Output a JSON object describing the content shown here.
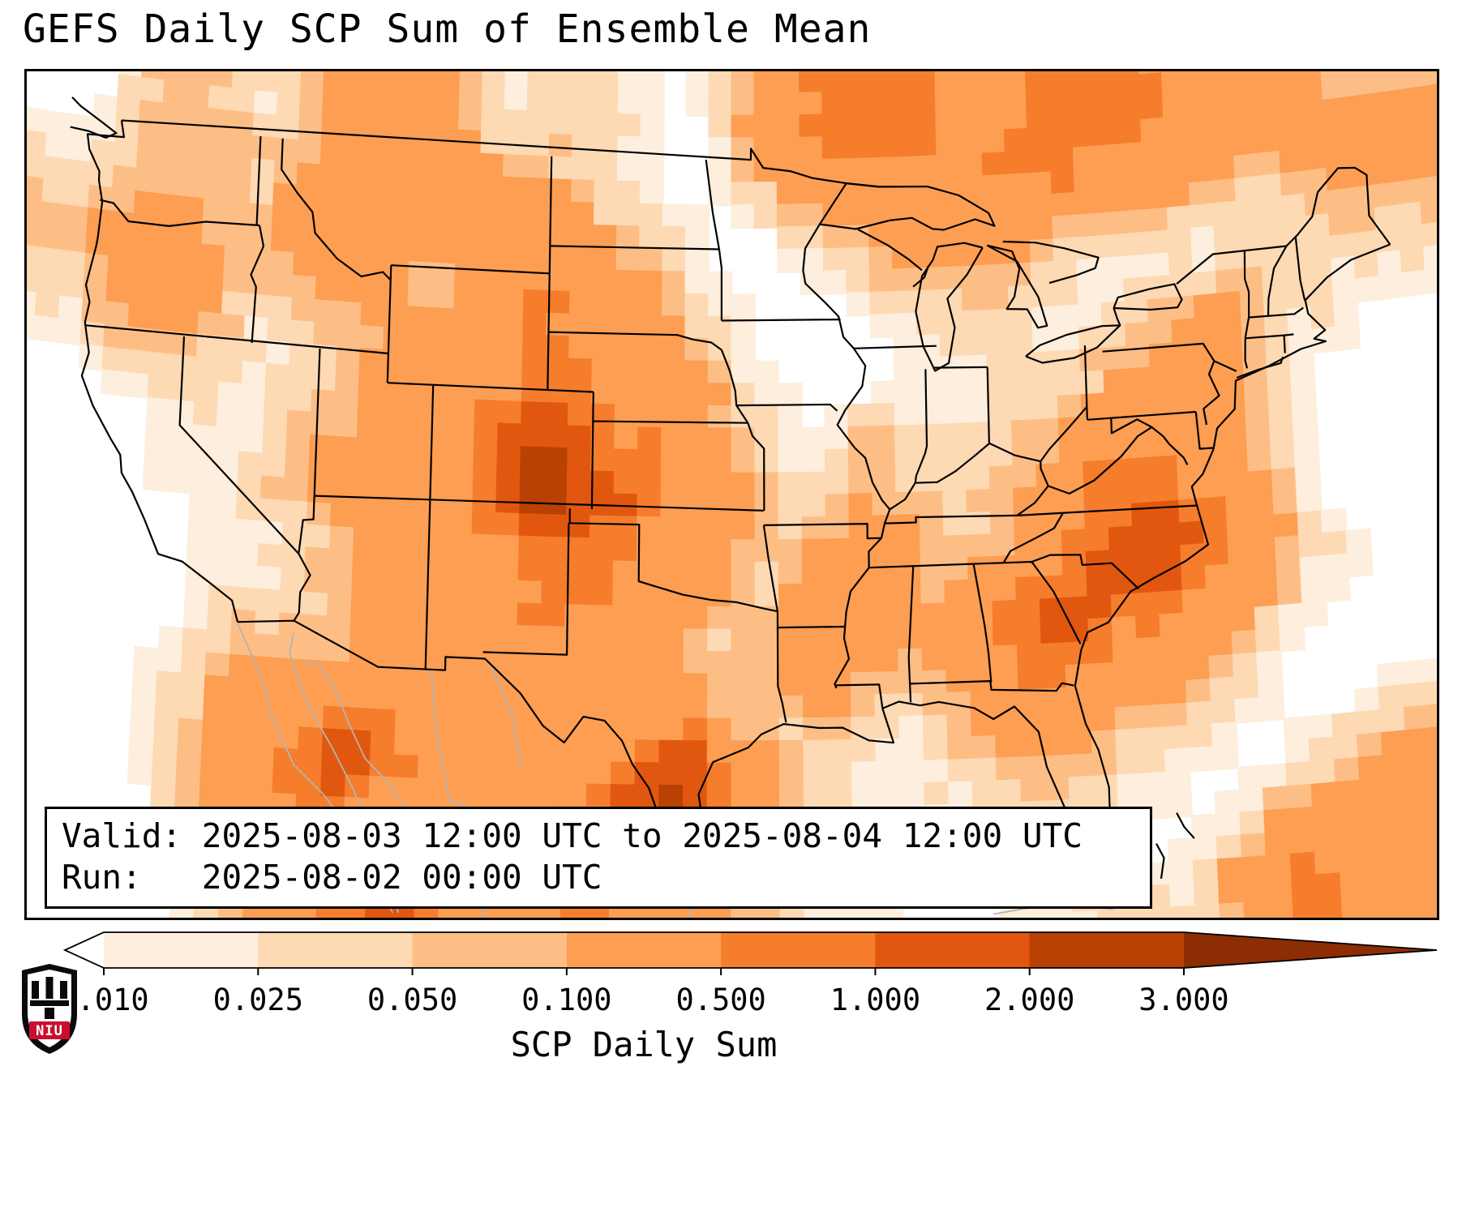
{
  "title": "GEFS Daily SCP Sum of Ensemble Mean",
  "info_box": {
    "valid_line": "Valid: 2025-08-03 12:00 UTC to 2025-08-04 12:00 UTC",
    "run_line": "Run:   2025-08-02 00:00 UTC"
  },
  "colorbar": {
    "label": "SCP Daily Sum",
    "tick_labels": [
      "0.010",
      "0.025",
      "0.050",
      "0.100",
      "0.500",
      "1.000",
      "2.000",
      "3.000"
    ],
    "bin_colors": [
      "#fdeedd",
      "#fdd9b4",
      "#fdbe85",
      "#fd9e53",
      "#f57d2c",
      "#e2570f",
      "#b94103"
    ],
    "under_color": "#ffffff",
    "over_color": "#8c2d04"
  },
  "logo": {
    "text": "NIU",
    "shield_color": "#0a0a0a",
    "band_color": "#c8102e",
    "text_color": "#ffffff"
  },
  "chart_data": {
    "type": "heatmap",
    "title": "GEFS Daily SCP Sum of Ensemble Mean",
    "colorbar_label": "SCP Daily Sum",
    "valid": "2025-08-03 12:00 UTC to 2025-08-04 12:00 UTC",
    "run": "2025-08-02 00:00 UTC",
    "levels": [
      0.01,
      0.025,
      0.05,
      0.1,
      0.5,
      1,
      2,
      3
    ],
    "legend_position": "bottom",
    "extent": {
      "lon_min": -125.5,
      "lon_max": -66.5,
      "lat_min": 23.0,
      "lat_max": 50.5
    },
    "grid": {
      "ncols": 29,
      "nrows": 18,
      "order": "row-major, first row = northernmost latitude band, first column = westernmost longitude band",
      "units": "SCP (dimensionless daily sum, ensemble mean)",
      "values": [
        [
          0,
          0.04,
          0.08,
          0.04,
          0.02,
          0.08,
          0.3,
          0.3,
          0.08,
          0.02,
          0.04,
          0.04,
          0.02,
          0,
          0.04,
          0.3,
          0.7,
          0.7,
          0.7,
          0.3,
          0.3,
          0.7,
          0.7,
          0.7,
          0.3,
          0.3,
          0.3,
          0.08,
          0.08
        ],
        [
          0.02,
          0.04,
          0.08,
          0.08,
          0.04,
          0.08,
          0.3,
          0.3,
          0.3,
          0.08,
          0.08,
          0.04,
          0.02,
          0,
          0.02,
          0.08,
          0.3,
          0.3,
          0.3,
          0.3,
          0.7,
          0.7,
          0.3,
          0.3,
          0.3,
          0.08,
          0.08,
          0.3,
          0.3
        ],
        [
          0.04,
          0.08,
          0.08,
          0.08,
          0.04,
          0.3,
          0.3,
          0.3,
          0.3,
          0.3,
          0.3,
          0.08,
          0.04,
          0.02,
          0,
          0.02,
          0.08,
          0.08,
          0.3,
          0.3,
          0.3,
          0.08,
          0.08,
          0.08,
          0.04,
          0.02,
          0.04,
          0.08,
          0.08
        ],
        [
          0.08,
          0.3,
          0.3,
          0.08,
          0.08,
          0.3,
          0.3,
          0.08,
          0.08,
          0.3,
          0.3,
          0.3,
          0.08,
          0.02,
          0,
          0,
          0.02,
          0.04,
          0.08,
          0.08,
          0.08,
          0.04,
          0.02,
          0.02,
          0.02,
          0.04,
          0.04,
          0.04,
          0.04
        ],
        [
          0.04,
          0.3,
          0.3,
          0.08,
          0.04,
          0.08,
          0.08,
          0.08,
          0.08,
          0.3,
          0.7,
          0.3,
          0.3,
          0.04,
          0.02,
          0,
          0,
          0.02,
          0.02,
          0.04,
          0.04,
          0.02,
          0.02,
          0.04,
          0.04,
          0.08,
          0.04,
          0.02,
          0.02
        ],
        [
          0.02,
          0.08,
          0.08,
          0.04,
          0.02,
          0.04,
          0.08,
          0.3,
          0.3,
          0.3,
          0.7,
          0.3,
          0.3,
          0.08,
          0.02,
          0,
          0,
          0,
          0.02,
          0.02,
          0.02,
          0.02,
          0.04,
          0.08,
          0.3,
          0.08,
          0.02,
          0.02,
          0
        ],
        [
          0,
          0.02,
          0.04,
          0.02,
          0.02,
          0.04,
          0.08,
          0.3,
          0.3,
          0.7,
          0.7,
          0.7,
          0.3,
          0.3,
          0.04,
          0.02,
          0,
          0.02,
          0.02,
          0.02,
          0.04,
          0.04,
          0.08,
          0.3,
          0.3,
          0.08,
          0.02,
          0,
          0
        ],
        [
          0,
          0,
          0.02,
          0.02,
          0.02,
          0.08,
          0.08,
          0.3,
          0.3,
          0.7,
          2.5,
          0.7,
          0.7,
          0.3,
          0.08,
          0.02,
          0.02,
          0.08,
          0.04,
          0.04,
          0.04,
          0.08,
          0.3,
          0.3,
          0.3,
          0.08,
          0.02,
          0,
          0
        ],
        [
          0,
          0,
          0.02,
          0.02,
          0.04,
          0.08,
          0.3,
          0.3,
          0.3,
          0.7,
          3.2,
          1.5,
          0.7,
          0.3,
          0.3,
          0.04,
          0.02,
          0.08,
          0.04,
          0.04,
          0.08,
          0.3,
          0.7,
          0.7,
          0.3,
          0.08,
          0.02,
          0,
          0
        ],
        [
          0,
          0,
          0,
          0.02,
          0.02,
          0.04,
          0.08,
          0.3,
          0.3,
          0.7,
          0.7,
          0.7,
          0.7,
          0.3,
          0.08,
          0.04,
          0.08,
          0.3,
          0.08,
          0.04,
          0.08,
          0.3,
          0.7,
          1.5,
          0.7,
          0.3,
          0.04,
          0,
          0
        ],
        [
          0,
          0,
          0,
          0.02,
          0.02,
          0.04,
          0.08,
          0.3,
          0.3,
          0.3,
          0.7,
          0.7,
          0.3,
          0.3,
          0.08,
          0.04,
          0.3,
          0.3,
          0.08,
          0.08,
          0.3,
          0.7,
          1.5,
          1.5,
          0.7,
          0.3,
          0.04,
          0.02,
          0
        ],
        [
          0,
          0,
          0,
          0.02,
          0.04,
          0.04,
          0.08,
          0.3,
          0.3,
          0.3,
          0.7,
          0.3,
          0.3,
          0.08,
          0.04,
          0.08,
          0.3,
          0.3,
          0.08,
          0.3,
          0.7,
          1.5,
          0.7,
          0.7,
          0.3,
          0.08,
          0.02,
          0,
          0
        ],
        [
          0,
          0,
          0.02,
          0.04,
          0.08,
          0.08,
          0.08,
          0.3,
          0.3,
          0.3,
          0.3,
          0.3,
          0.3,
          0.08,
          0.04,
          0.08,
          0.3,
          0.08,
          0.04,
          0.3,
          0.7,
          0.7,
          0.3,
          0.3,
          0.08,
          0.04,
          0,
          0,
          0
        ],
        [
          0,
          0,
          0.02,
          0.04,
          0.3,
          0.3,
          0.3,
          0.3,
          0.3,
          0.3,
          0.3,
          0.3,
          0.3,
          0.3,
          0.08,
          0.04,
          0.08,
          0.04,
          0.02,
          0.08,
          0.3,
          0.3,
          0.08,
          0.08,
          0.04,
          0.02,
          0,
          0,
          0.02
        ],
        [
          0,
          0,
          0.02,
          0.08,
          0.3,
          0.7,
          1.5,
          0.7,
          0.3,
          0.3,
          0.3,
          0.3,
          0.7,
          1.5,
          0.3,
          0.08,
          0.04,
          0.02,
          0.02,
          0.04,
          0.08,
          0.08,
          0.04,
          0.02,
          0.02,
          0,
          0.02,
          0.04,
          0.08
        ],
        [
          0,
          0,
          0.02,
          0.08,
          0.3,
          0.7,
          0.7,
          0.3,
          0.08,
          0.3,
          0.3,
          0.3,
          1.5,
          2.5,
          0.3,
          0.08,
          0.02,
          0.02,
          0.02,
          0.02,
          0.04,
          0.04,
          0.02,
          0.02,
          0,
          0.02,
          0.04,
          0.08,
          0.3
        ],
        [
          0,
          0,
          0,
          0.04,
          0.3,
          0.3,
          0.3,
          0.3,
          0.08,
          0.08,
          0.3,
          0.3,
          0.7,
          0.3,
          0.08,
          0.04,
          0.02,
          0,
          0.02,
          0.02,
          0.02,
          0.02,
          0.02,
          0,
          0.02,
          0.04,
          0.3,
          0.3,
          0.3
        ],
        [
          0,
          0,
          0,
          0.02,
          0.08,
          0.3,
          0.7,
          1.5,
          0.3,
          0.08,
          0.3,
          0.7,
          0.3,
          0.3,
          0.08,
          0.04,
          0.02,
          0.02,
          0,
          0,
          0.02,
          0.02,
          0.04,
          0.02,
          0.04,
          0.3,
          0.7,
          0.3,
          0.3
        ]
      ]
    }
  }
}
